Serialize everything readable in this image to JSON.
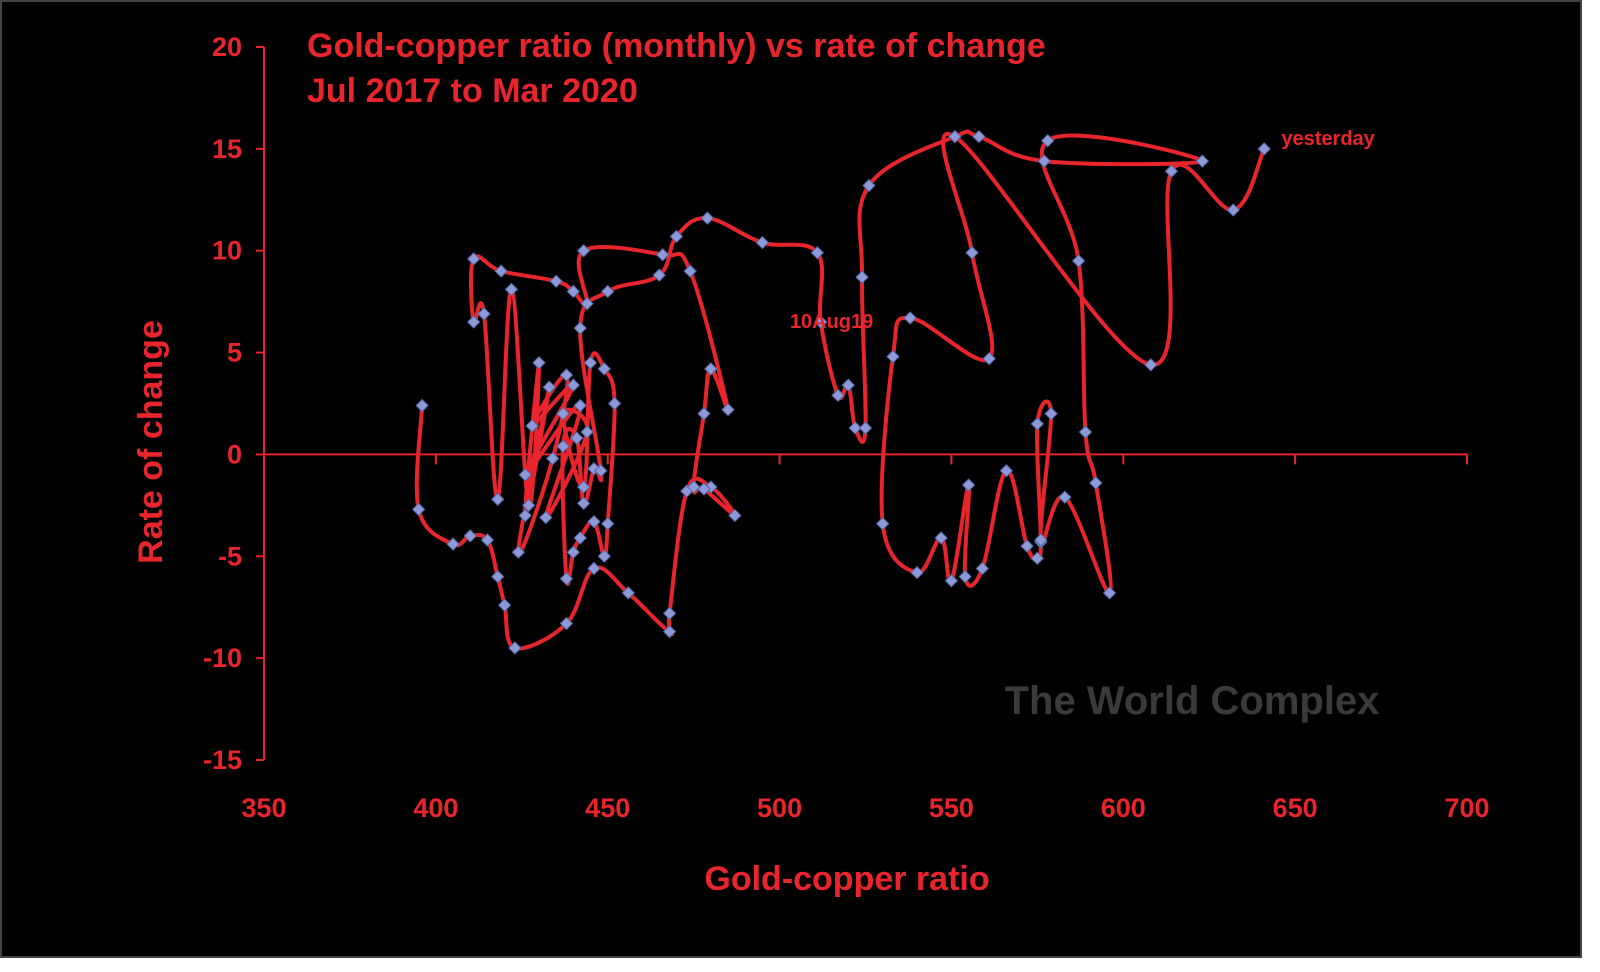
{
  "colors": {
    "background": "#000000",
    "accent": "#e8242c",
    "marker": "#8e9ad6",
    "watermark": "#3a3a3a"
  },
  "chart_data": {
    "type": "scatter",
    "title": "Gold-copper ratio (monthly) vs rate of change",
    "subtitle": "Jul 2017 to Mar 2020",
    "xlabel": "Gold-copper ratio",
    "ylabel": "Rate of change",
    "xlim": [
      350,
      700
    ],
    "ylim": [
      -15,
      20
    ],
    "xticks": [
      350,
      400,
      450,
      500,
      550,
      600,
      650,
      700
    ],
    "yticks": [
      20,
      15,
      10,
      5,
      0,
      -5,
      -10,
      -15
    ],
    "grid": false,
    "legend": "none",
    "connected": true,
    "annotations": [
      {
        "text": "10Aug19",
        "x": 503,
        "y": 6.2
      },
      {
        "text": "yesterday",
        "x": 646,
        "y": 15.2
      }
    ],
    "watermark": "The World Complex",
    "series": [
      {
        "points": [
          [
            396,
            2.4
          ],
          [
            395,
            -2.7
          ],
          [
            405,
            -4.4
          ],
          [
            410,
            -4.0
          ],
          [
            415,
            -4.2
          ],
          [
            418,
            -6.0
          ],
          [
            420,
            -7.4
          ],
          [
            423,
            -9.5
          ],
          [
            438,
            -8.3
          ],
          [
            446,
            -5.6
          ],
          [
            456,
            -6.8
          ],
          [
            468,
            -8.7
          ],
          [
            468,
            -7.8
          ],
          [
            473,
            -1.8
          ],
          [
            480,
            -1.6
          ],
          [
            487,
            -3.0
          ],
          [
            478,
            -1.7
          ],
          [
            475,
            -1.6
          ],
          [
            478,
            2.0
          ],
          [
            480,
            4.2
          ],
          [
            485,
            2.2
          ],
          [
            474,
            9.0
          ],
          [
            466,
            9.8
          ],
          [
            443,
            10.0
          ],
          [
            444,
            7.4
          ],
          [
            440,
            8.0
          ],
          [
            435,
            8.5
          ],
          [
            419,
            9.0
          ],
          [
            411,
            9.6
          ],
          [
            411,
            6.5
          ],
          [
            414,
            6.9
          ],
          [
            418,
            -2.2
          ],
          [
            422,
            8.1
          ],
          [
            427,
            -2.5
          ],
          [
            430,
            4.5
          ],
          [
            426,
            -3.0
          ],
          [
            433,
            3.3
          ],
          [
            424,
            -4.8
          ],
          [
            434,
            -0.2
          ],
          [
            438,
            3.9
          ],
          [
            428,
            1.4
          ],
          [
            440,
            3.4
          ],
          [
            426,
            -1.0
          ],
          [
            442,
            2.4
          ],
          [
            432,
            -3.1
          ],
          [
            444,
            1.1
          ],
          [
            437,
            2.0
          ],
          [
            443,
            -1.6
          ],
          [
            445,
            4.5
          ],
          [
            449,
            4.2
          ],
          [
            452,
            2.5
          ],
          [
            450,
            -3.4
          ],
          [
            449,
            -5.0
          ],
          [
            446,
            -3.3
          ],
          [
            442,
            -4.1
          ],
          [
            440,
            -4.8
          ],
          [
            438,
            -6.1
          ],
          [
            437,
            0.4
          ],
          [
            441,
            0.8
          ],
          [
            443,
            -2.4
          ],
          [
            446,
            -0.7
          ],
          [
            448,
            -0.8
          ],
          [
            442,
            6.2
          ],
          [
            450,
            8.0
          ],
          [
            465,
            8.8
          ],
          [
            470,
            10.7
          ],
          [
            479,
            11.6
          ],
          [
            495,
            10.4
          ],
          [
            511,
            9.9
          ],
          [
            512,
            6.5
          ],
          [
            517,
            2.9
          ],
          [
            520,
            3.4
          ],
          [
            522,
            1.3
          ],
          [
            525,
            1.3
          ],
          [
            524,
            8.7
          ],
          [
            526,
            13.2
          ],
          [
            551,
            15.6
          ],
          [
            558,
            15.6
          ],
          [
            577,
            14.4
          ],
          [
            623,
            14.4
          ],
          [
            578,
            15.4
          ],
          [
            587,
            9.5
          ],
          [
            589,
            1.1
          ],
          [
            592,
            -1.4
          ],
          [
            596,
            -6.8
          ],
          [
            583,
            -2.1
          ],
          [
            576,
            -4.3
          ],
          [
            579,
            2.0
          ],
          [
            575,
            1.5
          ],
          [
            576,
            -4.2
          ],
          [
            575,
            -5.1
          ],
          [
            572,
            -4.5
          ],
          [
            566,
            -0.8
          ],
          [
            559,
            -5.6
          ],
          [
            554,
            -6.0
          ],
          [
            555,
            -1.5
          ],
          [
            550,
            -6.2
          ],
          [
            547,
            -4.1
          ],
          [
            540,
            -5.8
          ],
          [
            530,
            -3.4
          ],
          [
            533,
            4.8
          ],
          [
            538,
            6.7
          ],
          [
            561,
            4.7
          ],
          [
            556,
            9.9
          ],
          [
            551,
            15.6
          ],
          [
            608,
            4.4
          ],
          [
            614,
            13.9
          ],
          [
            632,
            12.0
          ],
          [
            641,
            15.0
          ]
        ]
      }
    ]
  }
}
